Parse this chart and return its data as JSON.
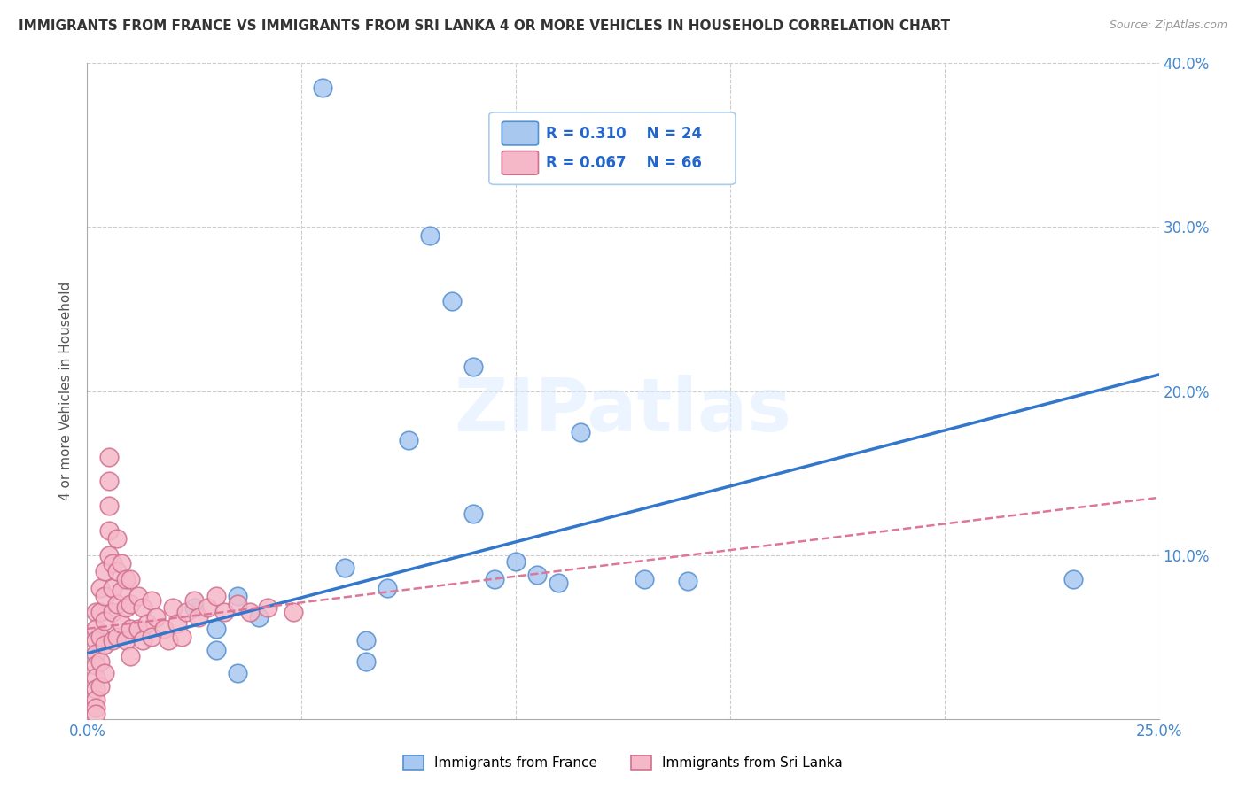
{
  "title": "IMMIGRANTS FROM FRANCE VS IMMIGRANTS FROM SRI LANKA 4 OR MORE VEHICLES IN HOUSEHOLD CORRELATION CHART",
  "source_text": "Source: ZipAtlas.com",
  "ylabel": "4 or more Vehicles in Household",
  "xlim": [
    0.0,
    0.25
  ],
  "ylim": [
    0.0,
    0.4
  ],
  "xticks": [
    0.0,
    0.05,
    0.1,
    0.15,
    0.2,
    0.25
  ],
  "yticks": [
    0.0,
    0.1,
    0.2,
    0.3,
    0.4
  ],
  "xtick_labels": [
    "0.0%",
    "",
    "",
    "",
    "",
    "25.0%"
  ],
  "ytick_labels_right": [
    "",
    "10.0%",
    "20.0%",
    "30.0%",
    "40.0%"
  ],
  "france_color": "#a8c8f0",
  "srilanka_color": "#f5b8c8",
  "france_edge": "#5590d0",
  "srilanka_edge": "#d07090",
  "france_R": 0.31,
  "france_N": 24,
  "srilanka_R": 0.067,
  "srilanka_N": 66,
  "france_line_color": "#3377cc",
  "srilanka_line_color": "#dd7799",
  "watermark": "ZIPatlas",
  "background_color": "#ffffff",
  "grid_color": "#cccccc",
  "france_x": [
    0.025,
    0.03,
    0.03,
    0.035,
    0.035,
    0.04,
    0.055,
    0.06,
    0.065,
    0.065,
    0.07,
    0.075,
    0.08,
    0.085,
    0.09,
    0.095,
    0.1,
    0.105,
    0.11,
    0.115,
    0.13,
    0.14,
    0.23,
    0.09
  ],
  "france_y": [
    0.068,
    0.055,
    0.042,
    0.075,
    0.028,
    0.062,
    0.385,
    0.092,
    0.048,
    0.035,
    0.08,
    0.17,
    0.295,
    0.255,
    0.125,
    0.085,
    0.096,
    0.088,
    0.083,
    0.175,
    0.085,
    0.084,
    0.085,
    0.215
  ],
  "srilanka_x": [
    0.002,
    0.002,
    0.002,
    0.002,
    0.002,
    0.002,
    0.002,
    0.002,
    0.002,
    0.002,
    0.003,
    0.003,
    0.003,
    0.003,
    0.003,
    0.004,
    0.004,
    0.004,
    0.004,
    0.004,
    0.005,
    0.005,
    0.005,
    0.005,
    0.005,
    0.006,
    0.006,
    0.006,
    0.006,
    0.007,
    0.007,
    0.007,
    0.007,
    0.008,
    0.008,
    0.008,
    0.009,
    0.009,
    0.009,
    0.01,
    0.01,
    0.01,
    0.01,
    0.012,
    0.012,
    0.013,
    0.013,
    0.014,
    0.015,
    0.015,
    0.016,
    0.018,
    0.019,
    0.02,
    0.021,
    0.022,
    0.023,
    0.025,
    0.026,
    0.028,
    0.03,
    0.032,
    0.035,
    0.038,
    0.042,
    0.048
  ],
  "srilanka_y": [
    0.065,
    0.055,
    0.048,
    0.04,
    0.033,
    0.025,
    0.018,
    0.012,
    0.007,
    0.003,
    0.08,
    0.065,
    0.05,
    0.035,
    0.02,
    0.09,
    0.075,
    0.06,
    0.045,
    0.028,
    0.16,
    0.145,
    0.13,
    0.115,
    0.1,
    0.095,
    0.08,
    0.065,
    0.048,
    0.11,
    0.09,
    0.07,
    0.05,
    0.095,
    0.078,
    0.058,
    0.085,
    0.068,
    0.048,
    0.085,
    0.07,
    0.055,
    0.038,
    0.075,
    0.055,
    0.068,
    0.048,
    0.058,
    0.072,
    0.05,
    0.062,
    0.055,
    0.048,
    0.068,
    0.058,
    0.05,
    0.065,
    0.072,
    0.062,
    0.068,
    0.075,
    0.065,
    0.07,
    0.065,
    0.068,
    0.065
  ]
}
